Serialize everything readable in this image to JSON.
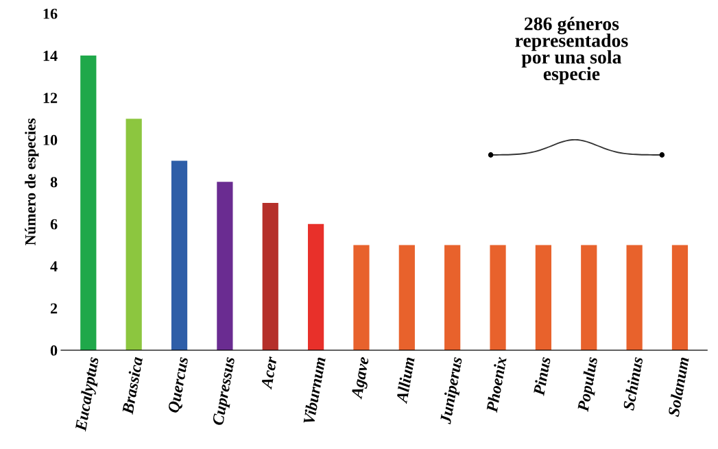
{
  "chart_data": {
    "type": "bar",
    "ylabel": "Número de especies",
    "categories": [
      "Eucalyptus",
      "Brassica",
      "Quercus",
      "Cupressus",
      "Acer",
      "Viburnum",
      "Agave",
      "Allium",
      "Juniperus",
      "Phoenix",
      "Pinus",
      "Populus",
      "Schinus",
      "Solanum"
    ],
    "values": [
      14,
      11,
      9,
      8,
      7,
      6,
      5,
      5,
      5,
      5,
      5,
      5,
      5,
      5
    ],
    "colors": [
      "#1fa84a",
      "#8cc63f",
      "#2e5ea8",
      "#6a2c91",
      "#b5302a",
      "#e8302a",
      "#e8622c",
      "#e8622c",
      "#e8622c",
      "#e8622c",
      "#e8622c",
      "#e8622c",
      "#e8622c",
      "#e8622c"
    ],
    "ylim": [
      0,
      16
    ],
    "yticks": [
      0,
      2,
      4,
      6,
      8,
      10,
      12,
      14,
      16
    ],
    "grid": false,
    "annotations": [
      "286 géneros\nrepresentados\npor una sola\nespecie"
    ]
  }
}
